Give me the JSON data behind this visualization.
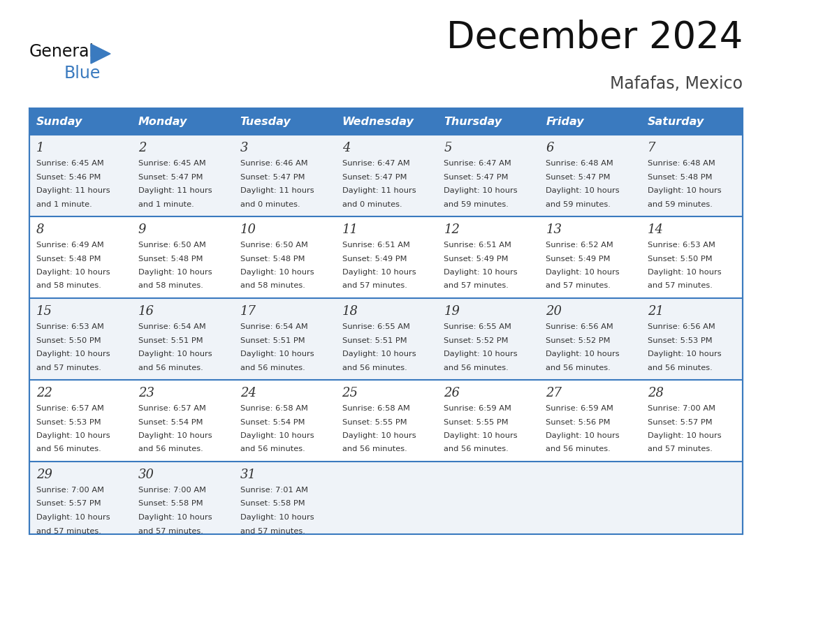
{
  "title": "December 2024",
  "subtitle": "Mafafas, Mexico",
  "header_color": "#3a7abf",
  "header_text_color": "#ffffff",
  "day_names": [
    "Sunday",
    "Monday",
    "Tuesday",
    "Wednesday",
    "Thursday",
    "Friday",
    "Saturday"
  ],
  "row_bg_colors": [
    "#eff3f8",
    "#ffffff"
  ],
  "border_color": "#3a7abf",
  "text_color": "#333333",
  "weeks": [
    [
      {
        "day": 1,
        "sunrise": "6:45 AM",
        "sunset": "5:46 PM",
        "daylight": "11 hours",
        "daylight2": "and 1 minute."
      },
      {
        "day": 2,
        "sunrise": "6:45 AM",
        "sunset": "5:47 PM",
        "daylight": "11 hours",
        "daylight2": "and 1 minute."
      },
      {
        "day": 3,
        "sunrise": "6:46 AM",
        "sunset": "5:47 PM",
        "daylight": "11 hours",
        "daylight2": "and 0 minutes."
      },
      {
        "day": 4,
        "sunrise": "6:47 AM",
        "sunset": "5:47 PM",
        "daylight": "11 hours",
        "daylight2": "and 0 minutes."
      },
      {
        "day": 5,
        "sunrise": "6:47 AM",
        "sunset": "5:47 PM",
        "daylight": "10 hours",
        "daylight2": "and 59 minutes."
      },
      {
        "day": 6,
        "sunrise": "6:48 AM",
        "sunset": "5:47 PM",
        "daylight": "10 hours",
        "daylight2": "and 59 minutes."
      },
      {
        "day": 7,
        "sunrise": "6:48 AM",
        "sunset": "5:48 PM",
        "daylight": "10 hours",
        "daylight2": "and 59 minutes."
      }
    ],
    [
      {
        "day": 8,
        "sunrise": "6:49 AM",
        "sunset": "5:48 PM",
        "daylight": "10 hours",
        "daylight2": "and 58 minutes."
      },
      {
        "day": 9,
        "sunrise": "6:50 AM",
        "sunset": "5:48 PM",
        "daylight": "10 hours",
        "daylight2": "and 58 minutes."
      },
      {
        "day": 10,
        "sunrise": "6:50 AM",
        "sunset": "5:48 PM",
        "daylight": "10 hours",
        "daylight2": "and 58 minutes."
      },
      {
        "day": 11,
        "sunrise": "6:51 AM",
        "sunset": "5:49 PM",
        "daylight": "10 hours",
        "daylight2": "and 57 minutes."
      },
      {
        "day": 12,
        "sunrise": "6:51 AM",
        "sunset": "5:49 PM",
        "daylight": "10 hours",
        "daylight2": "and 57 minutes."
      },
      {
        "day": 13,
        "sunrise": "6:52 AM",
        "sunset": "5:49 PM",
        "daylight": "10 hours",
        "daylight2": "and 57 minutes."
      },
      {
        "day": 14,
        "sunrise": "6:53 AM",
        "sunset": "5:50 PM",
        "daylight": "10 hours",
        "daylight2": "and 57 minutes."
      }
    ],
    [
      {
        "day": 15,
        "sunrise": "6:53 AM",
        "sunset": "5:50 PM",
        "daylight": "10 hours",
        "daylight2": "and 57 minutes."
      },
      {
        "day": 16,
        "sunrise": "6:54 AM",
        "sunset": "5:51 PM",
        "daylight": "10 hours",
        "daylight2": "and 56 minutes."
      },
      {
        "day": 17,
        "sunrise": "6:54 AM",
        "sunset": "5:51 PM",
        "daylight": "10 hours",
        "daylight2": "and 56 minutes."
      },
      {
        "day": 18,
        "sunrise": "6:55 AM",
        "sunset": "5:51 PM",
        "daylight": "10 hours",
        "daylight2": "and 56 minutes."
      },
      {
        "day": 19,
        "sunrise": "6:55 AM",
        "sunset": "5:52 PM",
        "daylight": "10 hours",
        "daylight2": "and 56 minutes."
      },
      {
        "day": 20,
        "sunrise": "6:56 AM",
        "sunset": "5:52 PM",
        "daylight": "10 hours",
        "daylight2": "and 56 minutes."
      },
      {
        "day": 21,
        "sunrise": "6:56 AM",
        "sunset": "5:53 PM",
        "daylight": "10 hours",
        "daylight2": "and 56 minutes."
      }
    ],
    [
      {
        "day": 22,
        "sunrise": "6:57 AM",
        "sunset": "5:53 PM",
        "daylight": "10 hours",
        "daylight2": "and 56 minutes."
      },
      {
        "day": 23,
        "sunrise": "6:57 AM",
        "sunset": "5:54 PM",
        "daylight": "10 hours",
        "daylight2": "and 56 minutes."
      },
      {
        "day": 24,
        "sunrise": "6:58 AM",
        "sunset": "5:54 PM",
        "daylight": "10 hours",
        "daylight2": "and 56 minutes."
      },
      {
        "day": 25,
        "sunrise": "6:58 AM",
        "sunset": "5:55 PM",
        "daylight": "10 hours",
        "daylight2": "and 56 minutes."
      },
      {
        "day": 26,
        "sunrise": "6:59 AM",
        "sunset": "5:55 PM",
        "daylight": "10 hours",
        "daylight2": "and 56 minutes."
      },
      {
        "day": 27,
        "sunrise": "6:59 AM",
        "sunset": "5:56 PM",
        "daylight": "10 hours",
        "daylight2": "and 56 minutes."
      },
      {
        "day": 28,
        "sunrise": "7:00 AM",
        "sunset": "5:57 PM",
        "daylight": "10 hours",
        "daylight2": "and 57 minutes."
      }
    ],
    [
      {
        "day": 29,
        "sunrise": "7:00 AM",
        "sunset": "5:57 PM",
        "daylight": "10 hours",
        "daylight2": "and 57 minutes."
      },
      {
        "day": 30,
        "sunrise": "7:00 AM",
        "sunset": "5:58 PM",
        "daylight": "10 hours",
        "daylight2": "and 57 minutes."
      },
      {
        "day": 31,
        "sunrise": "7:01 AM",
        "sunset": "5:58 PM",
        "daylight": "10 hours",
        "daylight2": "and 57 minutes."
      },
      null,
      null,
      null,
      null
    ]
  ]
}
